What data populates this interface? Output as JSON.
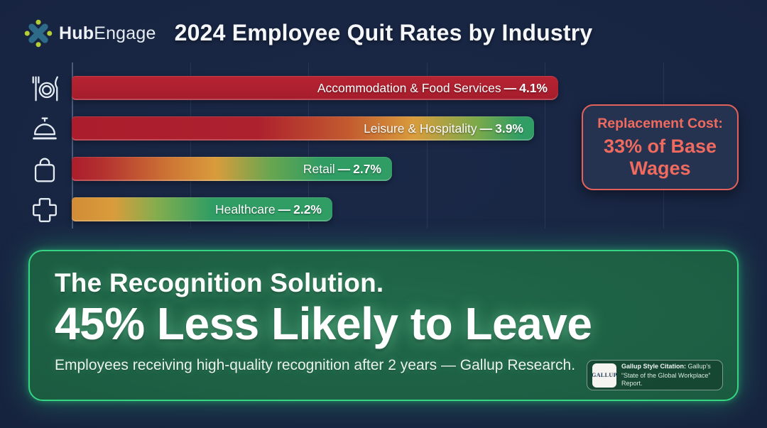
{
  "colors": {
    "background": "#172440",
    "bar_red": "#ad1f2e",
    "bar_orange": "#d89b3c",
    "bar_green": "#2f9d64",
    "callout_accent": "#ef6a5f",
    "callout_background": "#263350",
    "solution_border": "#36d584",
    "solution_background": "#1b5c41",
    "logo_blue": "#2d6b88",
    "logo_green": "#b6ce36"
  },
  "header": {
    "logo": {
      "brand_bold": "Hub",
      "brand_light": "Engage"
    },
    "title": "2024 Employee Quit Rates by Industry"
  },
  "chart_data": {
    "type": "bar",
    "orientation": "horizontal",
    "title": "2024 Employee Quit Rates by Industry",
    "categories": [
      "Accommodation & Food Services",
      "Leisure & Hospitality",
      "Retail",
      "Healthcare"
    ],
    "values": [
      4.1,
      3.9,
      2.7,
      2.2
    ],
    "unit": "%",
    "xlim": [
      0,
      5.6
    ],
    "grid": true,
    "gridline_interval": 1,
    "legend": "none",
    "separator": "—",
    "icons": [
      "dining-icon",
      "service-bell-icon",
      "shopping-bag-icon",
      "medical-cross-icon"
    ],
    "bars": [
      {
        "label": "Accommodation & Food Services",
        "value": 4.1,
        "value_label": "4.1%",
        "gradient": "linear-gradient(180deg,#b72433 0%,#a51c2b 100%)"
      },
      {
        "label": "Leisure & Hospitality",
        "value": 3.9,
        "value_label": "3.9%",
        "gradient": "linear-gradient(90deg,#ab1d2c 0%,#ad202e 40%,#c25b2f 60%,#d99c3c 74%,#79a94b 88%,#2f9d64 97%)"
      },
      {
        "label": "Retail",
        "value": 2.7,
        "value_label": "2.7%",
        "gradient": "linear-gradient(90deg,#ab1d2c 0%,#b43230 10%,#cd7434 30%,#d99c3c 45%,#68a650 62%,#2f9d64 78%)"
      },
      {
        "label": "Healthcare",
        "value": 2.2,
        "value_label": "2.2%",
        "gradient": "linear-gradient(90deg,#d28c36 0%,#d99c3c 16%,#86ad4d 32%,#2f9d64 54%)"
      }
    ]
  },
  "callout": {
    "line1": "Replacement Cost:",
    "line2": "33% of Base Wages"
  },
  "solution": {
    "heading": "The Recognition Solution.",
    "headline": "45% Less Likely to Leave",
    "subtext": "Employees receiving high-quality recognition after 2 years — Gallup Research.",
    "citation": {
      "logo_text": "GALLUP",
      "label_bold": "Gallup Style Citation:",
      "label_rest": "Gallup's",
      "line2": "“State of the Global Workplace” Report."
    }
  }
}
